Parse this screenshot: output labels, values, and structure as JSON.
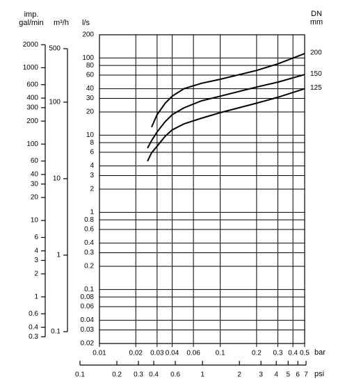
{
  "chart_data": {
    "type": "line",
    "x_label": "bar",
    "y_label": "l/s",
    "legend_title": [
      "DN",
      "mm"
    ],
    "xscale": "log",
    "yscale": "log",
    "grid": true,
    "xlim": [
      0.01,
      0.5
    ],
    "ylim": [
      0.02,
      200
    ],
    "xticks": [
      0.01,
      0.02,
      0.03,
      0.04,
      0.06,
      0.1,
      0.2,
      0.3,
      0.4,
      0.5
    ],
    "yticks": [
      200,
      100,
      80,
      60,
      40,
      30,
      20,
      10,
      8,
      6,
      4,
      3,
      2,
      1,
      0.8,
      0.6,
      0.4,
      0.3,
      0.2,
      0.1,
      0.08,
      0.06,
      0.04,
      0.03,
      0.02
    ],
    "x": [
      0.025,
      0.027,
      0.03,
      0.035,
      0.04,
      0.05,
      0.07,
      0.1,
      0.2,
      0.3,
      0.5
    ],
    "series": [
      {
        "name": "200",
        "color": "#000000",
        "values": [
          null,
          12.7,
          18.4,
          26,
          32,
          40,
          47,
          53,
          69,
          84,
          114
        ]
      },
      {
        "name": "150",
        "color": "#000000",
        "values": [
          6.8,
          8.5,
          11,
          15,
          18.4,
          22.6,
          27.9,
          32,
          42,
          48.7,
          61
        ]
      },
      {
        "name": "125",
        "color": "#000000",
        "values": [
          4.6,
          5.9,
          7.2,
          9.7,
          11.7,
          14,
          16.6,
          19.6,
          26,
          31,
          40
        ]
      }
    ],
    "x2": {
      "label": "psi",
      "lim": [
        0.1,
        7
      ],
      "ticks": [
        0.1,
        0.2,
        0.3,
        0.4,
        0.6,
        1,
        2,
        3,
        4,
        5,
        6,
        7
      ]
    },
    "y_left": [
      {
        "label": [
          "imp.",
          "gal/min"
        ],
        "lim": [
          0.245,
          2700
        ],
        "ticks": [
          2000,
          1000,
          600,
          400,
          300,
          200,
          100,
          60,
          40,
          30,
          20,
          10,
          6,
          4,
          3,
          2,
          1,
          0.6,
          0.4,
          0.3
        ]
      },
      {
        "label": [
          "m³/h"
        ],
        "lim": [
          0.07,
          760
        ],
        "ticks": [
          500,
          100,
          10,
          1,
          0.1
        ]
      }
    ]
  }
}
